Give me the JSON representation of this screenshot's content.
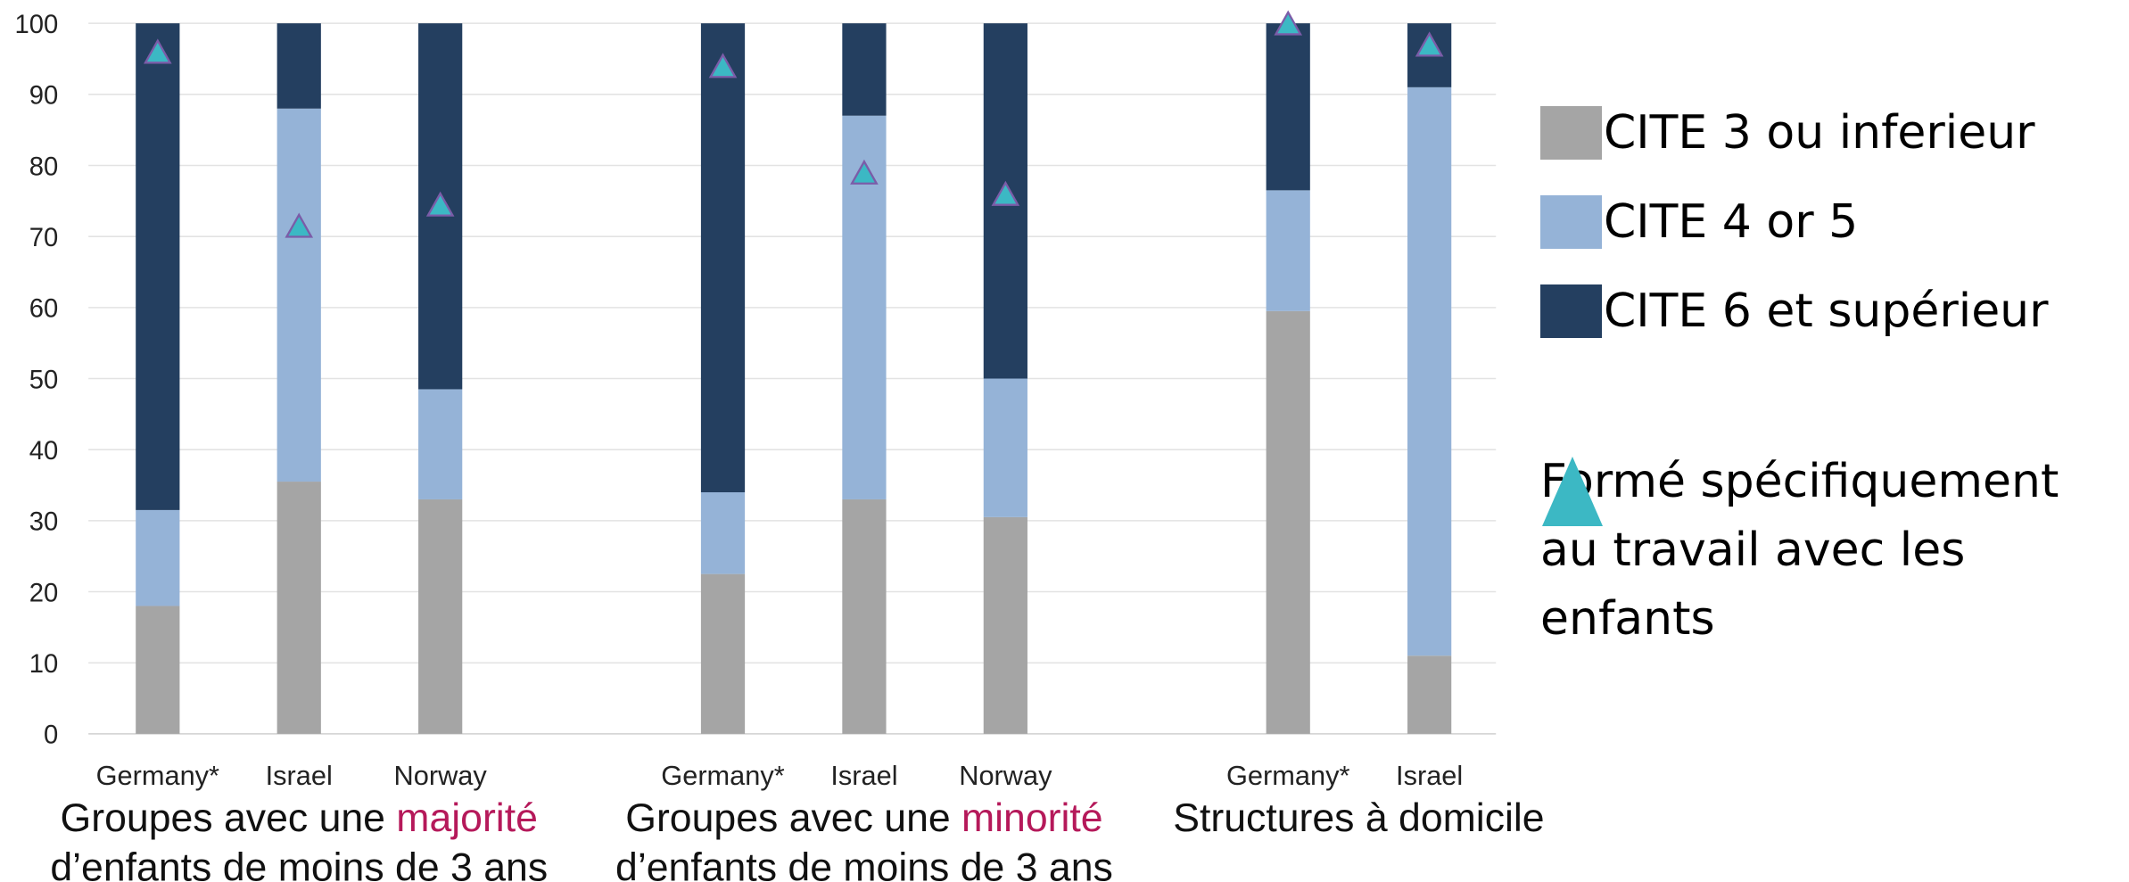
{
  "chart_data": {
    "type": "bar",
    "stacked": true,
    "categories": [
      "Germany*",
      "Israel",
      "Norway",
      null,
      "Germany*",
      "Israel",
      "Norway",
      null,
      "Germany*",
      "Israel"
    ],
    "series": [
      {
        "name": "CITE 3 ou inferieur",
        "color": "#a5a5a5",
        "values": [
          18,
          35.5,
          33,
          null,
          22.5,
          33,
          30.5,
          null,
          59.5,
          11
        ]
      },
      {
        "name": "CITE 4 or 5",
        "color": "#95b3d7",
        "values": [
          13.5,
          52.5,
          15.5,
          null,
          11.5,
          54,
          19.5,
          null,
          17,
          80
        ]
      },
      {
        "name": "CITE 6 et supérieur",
        "color": "#243f60",
        "values": [
          68.5,
          12,
          51.5,
          null,
          66,
          13,
          50,
          null,
          23.5,
          9
        ]
      }
    ],
    "markers": {
      "name": "Formé spécifiquement au travail avec les enfants",
      "color": "#3cb8c4",
      "values": [
        96,
        71.5,
        74.5,
        null,
        94,
        79,
        76,
        null,
        100,
        97
      ]
    },
    "groups": [
      {
        "text": "Groupes avec une",
        "highlight": "majorité",
        "line2": "d’enfants de moins de 3 ans"
      },
      {
        "text": "Groupes avec une",
        "highlight": "minorité",
        "line2": "d’enfants de moins de 3 ans"
      },
      {
        "text": "Structures à domicile"
      }
    ],
    "ylim": [
      0,
      100
    ],
    "yticks": [
      0,
      10,
      20,
      30,
      40,
      50,
      60,
      70,
      80,
      90,
      100
    ],
    "grid": true
  }
}
